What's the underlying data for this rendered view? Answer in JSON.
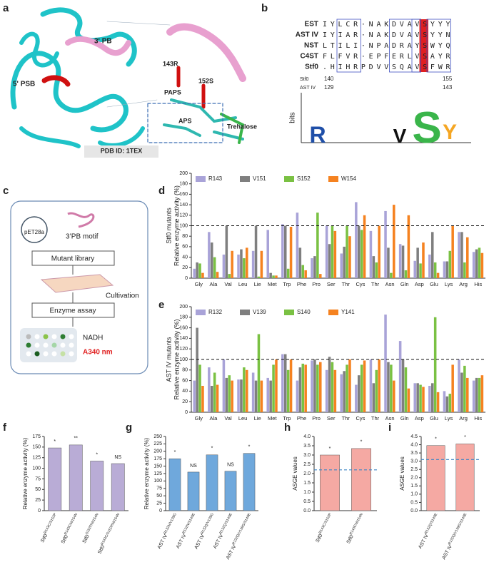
{
  "panel_labels": [
    "a",
    "b",
    "c",
    "d",
    "e",
    "f",
    "g",
    "h",
    "i"
  ],
  "panel_a": {
    "labels": [
      "3' PB",
      "5' PSB",
      "143R",
      "152S",
      "PAPS",
      "APS",
      "Trehalose"
    ],
    "pdb": "PDB ID: 1TEX"
  },
  "panel_b": {
    "rows": [
      {
        "name": "EST",
        "seq": "IYLCR·NAKDVAVSYYY"
      },
      {
        "name": "AST IV",
        "seq": "IYIAR·NAKDVAVSYYN"
      },
      {
        "name": "NST",
        "seq": "LTILI·NPADRAYSWYQ"
      },
      {
        "name": "C4ST",
        "seq": "FLFVR·EPFERLVSAYR"
      },
      {
        "name": "Stf0",
        "seq": ".HIHRPDVVSQAVSFWR"
      }
    ],
    "positions": [
      {
        "name": "Stf0",
        "start": "140",
        "end": "155"
      },
      {
        "name": "AST IV",
        "start": "129",
        "end": "143"
      }
    ],
    "logo_axis": "bits",
    "logo_letters": [
      "R",
      "V",
      "S",
      "Y"
    ]
  },
  "panel_c": {
    "plasmid": "pET28a",
    "motif": "3’PB motif",
    "steps": [
      "Mutant library",
      "Cultivation",
      "Enzyme assay"
    ],
    "readout": "NADH",
    "wavelength": "A340 nm"
  },
  "chart_data": [
    {
      "type": "grouped_bar",
      "group_label": "Stf0 mutants",
      "y_label": "Relative enzyme activity (%)",
      "categories": [
        "Gly",
        "Ala",
        "Val",
        "Leu",
        "Lie",
        "Met",
        "Trp",
        "Phe",
        "Pro",
        "Ser",
        "Thr",
        "Cys",
        "Thr",
        "Asn",
        "Gln",
        "Asp",
        "Glu",
        "Lys",
        "Arg",
        "His"
      ],
      "series": [
        {
          "name": "R143",
          "color": "#a9a3d8",
          "values": [
            18,
            88,
            45,
            45,
            52,
            92,
            103,
            125,
            38,
            100,
            47,
            145,
            90,
            128,
            65,
            33,
            45,
            32,
            88,
            50
          ]
        },
        {
          "name": "V151",
          "color": "#7f7f7f",
          "values": [
            30,
            68,
            100,
            55,
            100,
            10,
            100,
            58,
            42,
            65,
            60,
            100,
            42,
            58,
            62,
            58,
            88,
            32,
            88,
            55
          ]
        },
        {
          "name": "S152",
          "color": "#7ac143",
          "values": [
            28,
            40,
            8,
            38,
            3,
            5,
            18,
            25,
            125,
            100,
            100,
            92,
            30,
            10,
            15,
            28,
            30,
            52,
            30,
            58
          ]
        },
        {
          "name": "W154",
          "color": "#f58220",
          "values": [
            10,
            12,
            52,
            58,
            52,
            5,
            98,
            15,
            8,
            90,
            80,
            120,
            100,
            140,
            120,
            68,
            10,
            100,
            78,
            48
          ]
        }
      ],
      "ylim": [
        0,
        200
      ],
      "yticks": [
        0,
        20,
        40,
        60,
        80,
        100,
        120,
        140,
        160,
        180,
        200
      ],
      "reference_line": 100
    },
    {
      "type": "grouped_bar",
      "group_label": "AST IV  mutants",
      "y_label": "Relative enzyme activity (%)",
      "categories": [
        "Gly",
        "Ala",
        "Val",
        "Leu",
        "Lie",
        "Met",
        "Trp",
        "Phe",
        "Pro",
        "Ser",
        "Thr",
        "Cys",
        "Thr",
        "Asn",
        "Gln",
        "Asp",
        "Glu",
        "Lys",
        "Arg",
        "His"
      ],
      "series": [
        {
          "name": "R132",
          "color": "#a9a3d8",
          "values": [
            60,
            85,
            100,
            62,
            75,
            65,
            110,
            60,
            98,
            80,
            72,
            52,
            100,
            185,
            135,
            55,
            50,
            40,
            100,
            60
          ]
        },
        {
          "name": "V139",
          "color": "#7f7f7f",
          "values": [
            160,
            50,
            65,
            62,
            60,
            60,
            110,
            85,
            100,
            105,
            78,
            70,
            55,
            95,
            100,
            55,
            55,
            30,
            75,
            65
          ]
        },
        {
          "name": "S140",
          "color": "#7ac143",
          "values": [
            90,
            75,
            70,
            85,
            148,
            90,
            80,
            92,
            90,
            95,
            90,
            90,
            80,
            90,
            85,
            52,
            180,
            35,
            88,
            65
          ]
        },
        {
          "name": "Y141",
          "color": "#f58220",
          "values": [
            50,
            52,
            60,
            80,
            60,
            100,
            100,
            90,
            95,
            80,
            100,
            98,
            100,
            60,
            45,
            48,
            38,
            90,
            65,
            70
          ]
        }
      ],
      "ylim": [
        0,
        200
      ],
      "yticks": [
        0,
        20,
        40,
        60,
        80,
        100,
        120,
        140,
        160,
        180,
        200
      ],
      "reference_line": 100
    },
    {
      "type": "bar",
      "y_label": "Relative enzyme activity (%)",
      "color": "#b9acd6",
      "categories": [
        "Stf0",
        "Stf0",
        "Stf0",
        "Stf0"
      ],
      "category_superscripts": [
        "R143C/S152P",
        "R143C/W154N",
        "S152P/W154N",
        "R143C/S152P/W154N"
      ],
      "values": [
        148,
        155,
        117,
        111
      ],
      "annotations": [
        "*",
        "**",
        "*",
        "NS"
      ],
      "ylim": [
        0,
        175
      ],
      "yticks": [
        0,
        25,
        50,
        75,
        100,
        125,
        150,
        175
      ]
    },
    {
      "type": "bar",
      "y_label": "Relative enzyme activity (%)",
      "color": "#6fa8dc",
      "categories": [
        "AST IV",
        "AST IV",
        "AST IV",
        "AST IV",
        "AST IV"
      ],
      "category_superscripts": [
        "R132N/V139G",
        "R132N/S140E",
        "R132Q/V139G",
        "R132Q/S140E",
        "R132Q/V139G/S140E"
      ],
      "values": [
        175,
        130,
        188,
        133,
        193
      ],
      "annotations": [
        "*",
        "NS",
        "*",
        "NS",
        "*"
      ],
      "ylim": [
        0,
        250
      ],
      "yticks": [
        0,
        25,
        50,
        75,
        100,
        125,
        150,
        175,
        200,
        225,
        250
      ]
    },
    {
      "type": "bar",
      "y_label": "ASGE values",
      "color": "#f5a9a3",
      "categories": [
        "Stf0",
        "Stf0"
      ],
      "category_superscripts": [
        "R143C/S152P",
        "R143C/W154N"
      ],
      "values": [
        3.0,
        3.35
      ],
      "annotations": [
        "*",
        "*"
      ],
      "reference_line": 2.2,
      "ylim": [
        0,
        4
      ],
      "yticks": [
        {
          "value": 0,
          "label": "0.0"
        },
        0.5,
        {
          "value": 1,
          "label": "1.0"
        },
        1.5,
        {
          "value": 2,
          "label": "2.0"
        },
        2.5,
        {
          "value": 3,
          "label": "3.0"
        },
        3.5,
        {
          "value": 4,
          "label": "4.0"
        }
      ]
    },
    {
      "type": "bar",
      "y_label": "ASGE values",
      "color": "#f5a9a3",
      "categories": [
        "AST IV",
        "AST IV"
      ],
      "category_superscripts": [
        "R132Q/S140E",
        "R132Q/V139G/S140E"
      ],
      "values": [
        3.95,
        4.05
      ],
      "annotations": [
        "*",
        "*"
      ],
      "reference_line": 3.1,
      "ylim": [
        0,
        4.5
      ],
      "yticks": [
        {
          "value": 0,
          "label": "0.0"
        },
        0.5,
        {
          "value": 1,
          "label": "1.0"
        },
        1.5,
        {
          "value": 2,
          "label": "2.0"
        },
        2.5,
        {
          "value": 3,
          "label": "3.0"
        },
        3.5,
        {
          "value": 4,
          "label": "4.0"
        },
        4.5
      ]
    }
  ]
}
